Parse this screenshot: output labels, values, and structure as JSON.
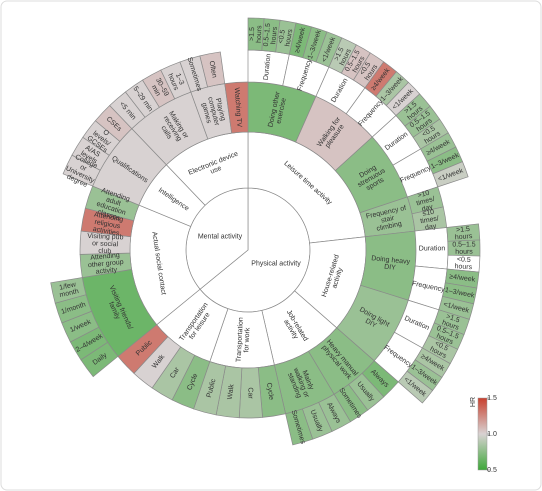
{
  "chart_data": {
    "type": "sunburst",
    "clim": [
      0.5,
      1.5
    ],
    "cticks": [
      1.5,
      {
        "value": 1,
        "label": "1.0"
      },
      0.5
    ],
    "clabel": "HR",
    "nodes": [
      {
        "name": "Physical activity",
        "children": [
          {
            "name": "Leisure time activity",
            "children": [
              {
                "name": "Doing other exercise",
                "hr": 0.7,
                "children": [
                  {
                    "name": "Duration",
                    "children": [
                      {
                        "name": ">1.5 hours",
                        "hr": 0.75
                      },
                      {
                        "name": "0.5–1.5 hours",
                        "hr": 0.75
                      },
                      {
                        "name": "<0.5 hours",
                        "hr": 0.8
                      }
                    ]
                  },
                  {
                    "name": "Frequency",
                    "children": [
                      {
                        "name": "≥4/week",
                        "hr": 0.7
                      },
                      {
                        "name": "1–3/week",
                        "hr": 0.75
                      },
                      {
                        "name": "<1/week",
                        "hr": 0.8
                      }
                    ]
                  }
                ]
              },
              {
                "name": "Walking for pleasure",
                "hr": 1.05,
                "children": [
                  {
                    "name": "Duration",
                    "children": [
                      {
                        "name": ">1.5 hours",
                        "hr": 0.9
                      },
                      {
                        "name": "0.5–1.5 hours",
                        "hr": 1.05
                      },
                      {
                        "name": "<0.5 hours",
                        "hr": 1.05
                      }
                    ]
                  },
                  {
                    "name": "Frequency",
                    "children": [
                      {
                        "name": "≥4/week",
                        "hr": 1.3
                      },
                      {
                        "name": "1–3/week",
                        "hr": 0.85
                      },
                      {
                        "name": "<1/week",
                        "hr": 1.0
                      }
                    ]
                  }
                ]
              },
              {
                "name": "Doing strenuous sports",
                "hr": 0.75,
                "children": [
                  {
                    "name": "Duration",
                    "children": [
                      {
                        "name": ">1.5 hours",
                        "hr": 0.8
                      },
                      {
                        "name": "0.5–1.5 hours",
                        "hr": 0.8
                      },
                      {
                        "name": "<0.5 hours",
                        "hr": 0.85
                      }
                    ]
                  },
                  {
                    "name": "Frequency",
                    "children": [
                      {
                        "name": "≥4/week",
                        "hr": 0.8
                      },
                      {
                        "name": "1–3/week",
                        "hr": 0.75
                      },
                      {
                        "name": "<1/week",
                        "hr": 0.95
                      }
                    ]
                  }
                ]
              },
              {
                "name": "Frequency of stair climbing",
                "hr": 0.8,
                "children": [
                  {
                    "name": ">10 times/ day",
                    "hr": 0.8
                  },
                  {
                    "name": "≤10 times/ day",
                    "hr": 0.85
                  }
                ]
              }
            ]
          },
          {
            "name": "House-related activity",
            "children": [
              {
                "name": "Doing heavy DIY",
                "hr": 0.75,
                "children": [
                  {
                    "name": "Duration",
                    "children": [
                      {
                        "name": ">1.5 hours",
                        "hr": 0.8
                      },
                      {
                        "name": "0.5–1.5 hours",
                        "hr": 0.8
                      },
                      {
                        "name": "<0.5 hours"
                      }
                    ]
                  },
                  {
                    "name": "Frequency",
                    "children": [
                      {
                        "name": "≥4/week",
                        "hr": 0.75
                      },
                      {
                        "name": "1–3/week",
                        "hr": 0.75
                      },
                      {
                        "name": "<1/week",
                        "hr": 0.8
                      }
                    ]
                  }
                ]
              },
              {
                "name": "Doing light DIY",
                "hr": 0.8,
                "children": [
                  {
                    "name": "Duration",
                    "children": [
                      {
                        "name": ">1.5 hours",
                        "hr": 0.8
                      },
                      {
                        "name": "0.5–1.5 hours",
                        "hr": 0.8
                      },
                      {
                        "name": "<0.5 hours",
                        "hr": 0.85
                      }
                    ]
                  },
                  {
                    "name": "Frequency",
                    "children": [
                      {
                        "name": "≥4/week",
                        "hr": 0.85
                      },
                      {
                        "name": "1–3/week",
                        "hr": 0.8
                      },
                      {
                        "name": "<1/week",
                        "hr": 0.9
                      }
                    ]
                  }
                ]
              }
            ]
          },
          {
            "name": "Job-related activity",
            "children": [
              {
                "name": "Heavy manual physical work",
                "hr": 0.75,
                "children": [
                  {
                    "name": "Always",
                    "hr": 0.7
                  },
                  {
                    "name": "Usually",
                    "hr": 0.8
                  },
                  {
                    "name": "Sometimes",
                    "hr": 0.75
                  }
                ]
              },
              {
                "name": "Mainly walking or standing",
                "hr": 0.75,
                "children": [
                  {
                    "name": "Always",
                    "hr": 0.8
                  },
                  {
                    "name": "Usually",
                    "hr": 0.8
                  },
                  {
                    "name": "Sometimes",
                    "hr": 0.75
                  }
                ]
              }
            ]
          },
          {
            "name": "Transportation for work",
            "children": [
              {
                "name": "Cycle",
                "hr": 0.75
              },
              {
                "name": "Car",
                "hr": 0.85
              },
              {
                "name": "Walk",
                "hr": 0.85
              },
              {
                "name": "Public",
                "hr": 0.85
              }
            ]
          },
          {
            "name": "Transportation for leisure",
            "children": [
              {
                "name": "Cycle",
                "hr": 0.75
              },
              {
                "name": "Car",
                "hr": 0.85
              },
              {
                "name": "Walk",
                "hr": 1.0
              },
              {
                "name": "Public",
                "hr": 1.3
              }
            ]
          }
        ]
      },
      {
        "name": "Mental activity",
        "children": [
          {
            "name": "Actual social contact",
            "children": [
              {
                "name": "Visiting friends/ family",
                "hr": 0.65,
                "children": [
                  {
                    "name": "Daily",
                    "hr": 0.7
                  },
                  {
                    "name": "2–4/week",
                    "hr": 0.7
                  },
                  {
                    "name": "1/week",
                    "hr": 0.75
                  },
                  {
                    "name": "1/month",
                    "hr": 0.75
                  },
                  {
                    "name": "1/few month",
                    "hr": 0.8
                  }
                ]
              },
              {
                "name": "Attending other group activity",
                "hr": 0.8
              },
              {
                "name": "Visiting pub or social club",
                "hr": 1.0
              },
              {
                "name": "Attending religious activities",
                "hr": 1.3
              },
              {
                "name": "Attending adult education classes",
                "hr": 0.8
              }
            ]
          },
          {
            "name": "Intelligence",
            "children": [
              {
                "name": "Qualifications",
                "hr": 1.0,
                "children": [
                  {
                    "name": "College or University degree",
                    "hr": 1.0
                  },
                  {
                    "name": "A/AS levels",
                    "hr": 1.0
                  },
                  {
                    "name": "O levels/ GCSEs",
                    "hr": 1.0
                  },
                  {
                    "name": "CSEs",
                    "hr": 1.05
                  }
                ]
              }
            ]
          },
          {
            "name": "Electronic device use",
            "children": [
              {
                "name": "Making or receiving calls",
                "hr": 1.0,
                "children": [
                  {
                    "name": "<5 min",
                    "hr": 1.0
                  },
                  {
                    "name": "5–29 min",
                    "hr": 1.0
                  },
                  {
                    "name": "30–59 min",
                    "hr": 1.05
                  },
                  {
                    "name": "1–3 hours",
                    "hr": 1.0
                  }
                ]
              },
              {
                "name": "Playing computer games",
                "hr": 1.0,
                "children": [
                  {
                    "name": "Sometimes",
                    "hr": 1.0
                  },
                  {
                    "name": "Often",
                    "hr": 1.05
                  }
                ]
              },
              {
                "name": "Watching TV",
                "hr": 1.3
              }
            ]
          }
        ]
      }
    ]
  }
}
